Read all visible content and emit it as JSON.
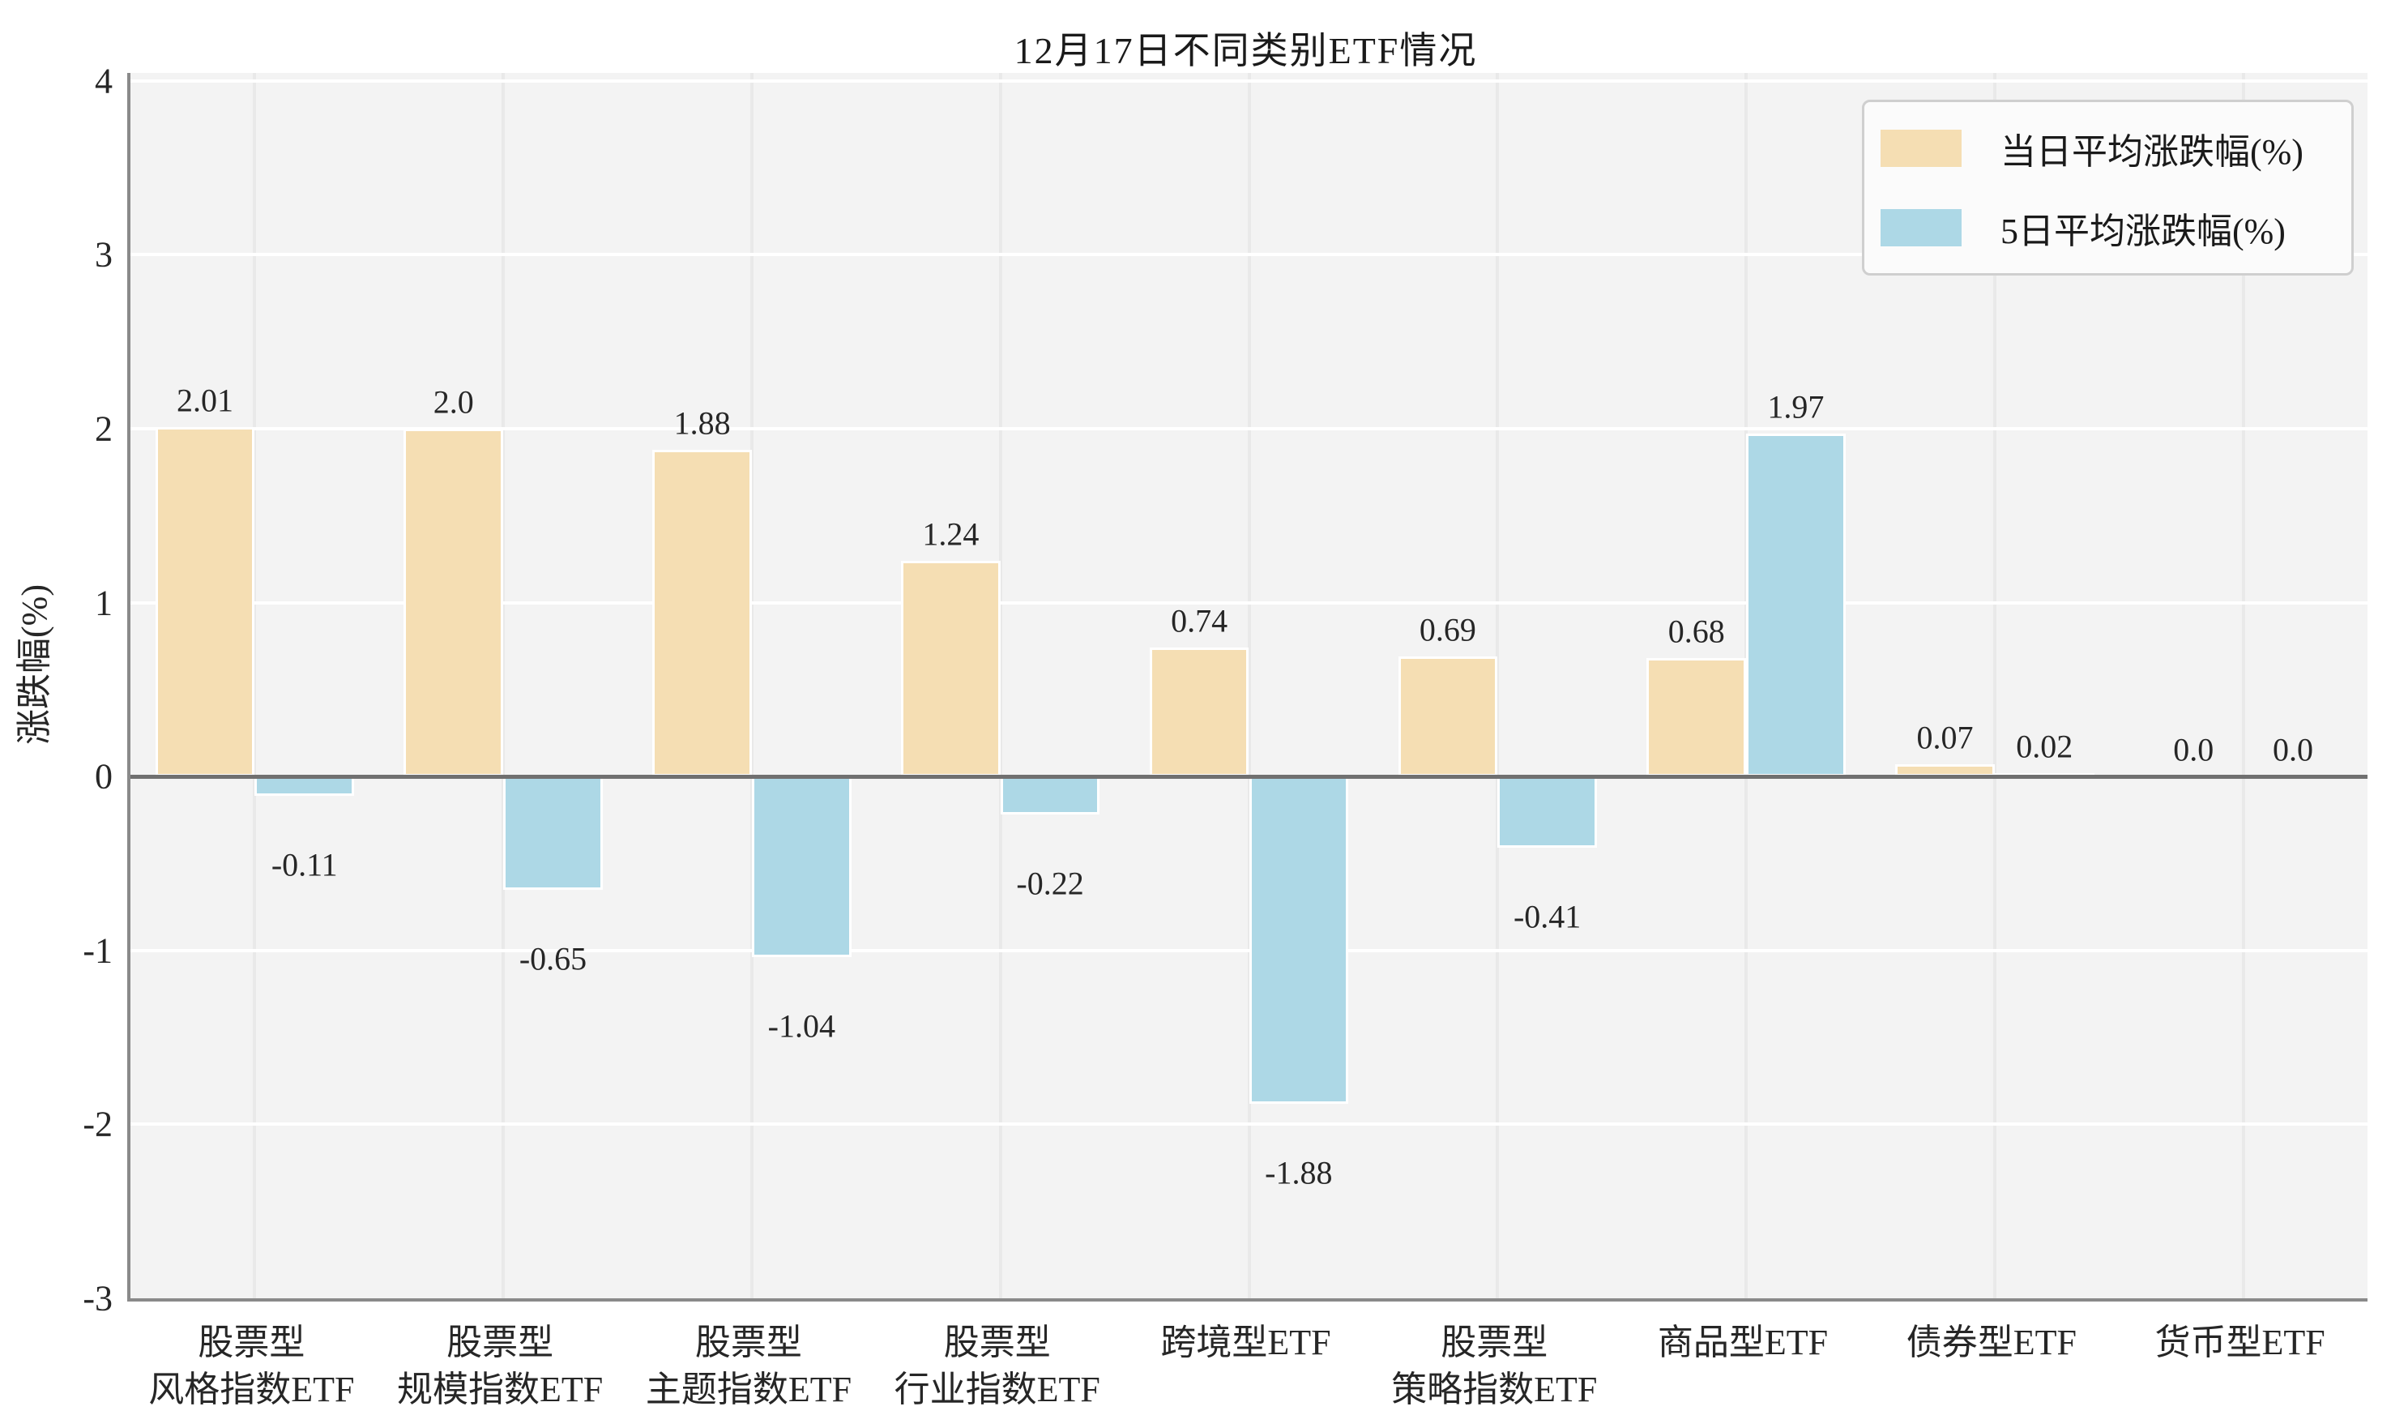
{
  "title": "12月17日不同类别ETF情况",
  "y_axis_label": "涨跌幅(%)",
  "colors": {
    "series1": "#F5DEB3",
    "series2": "#ADD8E6",
    "plot_background": "#F3F3F3",
    "horizontal_grid": "#FFFFFF",
    "vertical_grid": "#E9E9E9",
    "zero_line": "#707070",
    "axis_spine": "#8A8A8A",
    "text": "#262626",
    "legend_border": "#CFCFCF",
    "legend_background": "#FBFBFB"
  },
  "chart_data": {
    "type": "bar",
    "title": "12月17日不同类别ETF情况",
    "xlabel": "",
    "ylabel": "涨跌幅(%)",
    "ylim": [
      -3,
      4.045
    ],
    "yticks": [
      4,
      3,
      2,
      1,
      0,
      -1,
      -2,
      -3
    ],
    "grid": true,
    "legend_position": "upper right",
    "categories": [
      [
        "股票型",
        "风格指数ETF"
      ],
      [
        "股票型",
        "规模指数ETF"
      ],
      [
        "股票型",
        "主题指数ETF"
      ],
      [
        "股票型",
        "行业指数ETF"
      ],
      [
        "跨境型ETF"
      ],
      [
        "股票型",
        "策略指数ETF"
      ],
      [
        "商品型ETF"
      ],
      [
        "债券型ETF"
      ],
      [
        "货币型ETF"
      ]
    ],
    "series": [
      {
        "name": "当日平均涨跌幅(%)",
        "color": "#F5DEB3",
        "values": [
          2.01,
          2.0,
          1.88,
          1.24,
          0.74,
          0.69,
          0.68,
          0.07,
          0.0
        ],
        "labels": [
          "2.01",
          "2.0",
          "1.88",
          "1.24",
          "0.74",
          "0.69",
          "0.68",
          "0.07",
          "0.0"
        ]
      },
      {
        "name": "5日平均涨跌幅(%)",
        "color": "#ADD8E6",
        "values": [
          -0.11,
          -0.65,
          -1.04,
          -0.22,
          -1.88,
          -0.41,
          1.97,
          0.02,
          0.0
        ],
        "labels": [
          "-0.11",
          "-0.65",
          "-1.04",
          "-0.22",
          "-1.88",
          "-0.41",
          "1.97",
          "0.02",
          "0.0"
        ]
      }
    ]
  }
}
